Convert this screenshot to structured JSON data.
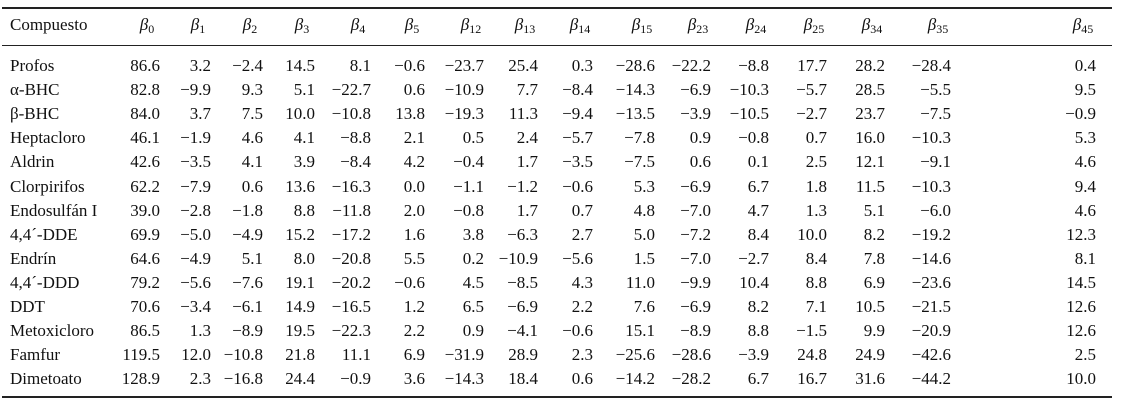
{
  "table": {
    "header": {
      "label": "Compuesto",
      "coefficients": [
        {
          "symbol": "β",
          "index": "0"
        },
        {
          "symbol": "β",
          "index": "1"
        },
        {
          "symbol": "β",
          "index": "2"
        },
        {
          "symbol": "β",
          "index": "3"
        },
        {
          "symbol": "β",
          "index": "4"
        },
        {
          "symbol": "β",
          "index": "5"
        },
        {
          "symbol": "β",
          "index": "12"
        },
        {
          "symbol": "β",
          "index": "13"
        },
        {
          "symbol": "β",
          "index": "14"
        },
        {
          "symbol": "β",
          "index": "15"
        },
        {
          "symbol": "β",
          "index": "23"
        },
        {
          "symbol": "β",
          "index": "24"
        },
        {
          "symbol": "β",
          "index": "25"
        },
        {
          "symbol": "β",
          "index": "34"
        },
        {
          "symbol": "β",
          "index": "35"
        },
        {
          "symbol": "β",
          "index": "45"
        }
      ]
    },
    "rows": [
      {
        "name": "Profos",
        "values": [
          "86.6",
          "3.2",
          "−2.4",
          "14.5",
          "8.1",
          "−0.6",
          "−23.7",
          "25.4",
          "0.3",
          "−28.6",
          "−22.2",
          "−8.8",
          "17.7",
          "28.2",
          "−28.4",
          "0.4"
        ]
      },
      {
        "name": "α-BHC",
        "values": [
          "82.8",
          "−9.9",
          "9.3",
          "5.1",
          "−22.7",
          "0.6",
          "−10.9",
          "7.7",
          "−8.4",
          "−14.3",
          "−6.9",
          "−10.3",
          "−5.7",
          "28.5",
          "−5.5",
          "9.5"
        ]
      },
      {
        "name": "β-BHC",
        "values": [
          "84.0",
          "3.7",
          "7.5",
          "10.0",
          "−10.8",
          "13.8",
          "−19.3",
          "11.3",
          "−9.4",
          "−13.5",
          "−3.9",
          "−10.5",
          "−2.7",
          "23.7",
          "−7.5",
          "−0.9"
        ]
      },
      {
        "name": "Heptacloro",
        "values": [
          "46.1",
          "−1.9",
          "4.6",
          "4.1",
          "−8.8",
          "2.1",
          "0.5",
          "2.4",
          "−5.7",
          "−7.8",
          "0.9",
          "−0.8",
          "0.7",
          "16.0",
          "−10.3",
          "5.3"
        ]
      },
      {
        "name": "Aldrin",
        "values": [
          "42.6",
          "−3.5",
          "4.1",
          "3.9",
          "−8.4",
          "4.2",
          "−0.4",
          "1.7",
          "−3.5",
          "−7.5",
          "0.6",
          "0.1",
          "2.5",
          "12.1",
          "−9.1",
          "4.6"
        ]
      },
      {
        "name": "Clorpirifos",
        "values": [
          "62.2",
          "−7.9",
          "0.6",
          "13.6",
          "−16.3",
          "0.0",
          "−1.1",
          "−1.2",
          "−0.6",
          "5.3",
          "−6.9",
          "6.7",
          "1.8",
          "11.5",
          "−10.3",
          "9.4"
        ]
      },
      {
        "name": "Endosulfán I",
        "values": [
          "39.0",
          "−2.8",
          "−1.8",
          "8.8",
          "−11.8",
          "2.0",
          "−0.8",
          "1.7",
          "0.7",
          "4.8",
          "−7.0",
          "4.7",
          "1.3",
          "5.1",
          "−6.0",
          "4.6"
        ]
      },
      {
        "name": "4,4´-DDE",
        "values": [
          "69.9",
          "−5.0",
          "−4.9",
          "15.2",
          "−17.2",
          "1.6",
          "3.8",
          "−6.3",
          "2.7",
          "5.0",
          "−7.2",
          "8.4",
          "10.0",
          "8.2",
          "−19.2",
          "12.3"
        ]
      },
      {
        "name": "Endrín",
        "values": [
          "64.6",
          "−4.9",
          "5.1",
          "8.0",
          "−20.8",
          "5.5",
          "0.2",
          "−10.9",
          "−5.6",
          "1.5",
          "−7.0",
          "−2.7",
          "8.4",
          "7.8",
          "−14.6",
          "8.1"
        ]
      },
      {
        "name": "4,4´-DDD",
        "values": [
          "79.2",
          "−5.6",
          "−7.6",
          "19.1",
          "−20.2",
          "−0.6",
          "4.5",
          "−8.5",
          "4.3",
          "11.0",
          "−9.9",
          "10.4",
          "8.8",
          "6.9",
          "−23.6",
          "14.5"
        ]
      },
      {
        "name": "DDT",
        "values": [
          "70.6",
          "−3.4",
          "−6.1",
          "14.9",
          "−16.5",
          "1.2",
          "6.5",
          "−6.9",
          "2.2",
          "7.6",
          "−6.9",
          "8.2",
          "7.1",
          "10.5",
          "−21.5",
          "12.6"
        ]
      },
      {
        "name": "Metoxicloro",
        "values": [
          "86.5",
          "1.3",
          "−8.9",
          "19.5",
          "−22.3",
          "2.2",
          "0.9",
          "−4.1",
          "−0.6",
          "15.1",
          "−8.9",
          "8.8",
          "−1.5",
          "9.9",
          "−20.9",
          "12.6"
        ]
      },
      {
        "name": "Famfur",
        "values": [
          "119.5",
          "12.0",
          "−10.8",
          "21.8",
          "11.1",
          "6.9",
          "−31.9",
          "28.9",
          "2.3",
          "−25.6",
          "−28.6",
          "−3.9",
          "24.8",
          "24.9",
          "−42.6",
          "2.5"
        ]
      },
      {
        "name": "Dimetoato",
        "values": [
          "128.9",
          "2.3",
          "−16.8",
          "24.4",
          "−0.9",
          "3.6",
          "−14.3",
          "18.4",
          "0.6",
          "−14.2",
          "−28.2",
          "6.7",
          "16.7",
          "31.6",
          "−44.2",
          "10.0"
        ]
      }
    ]
  }
}
